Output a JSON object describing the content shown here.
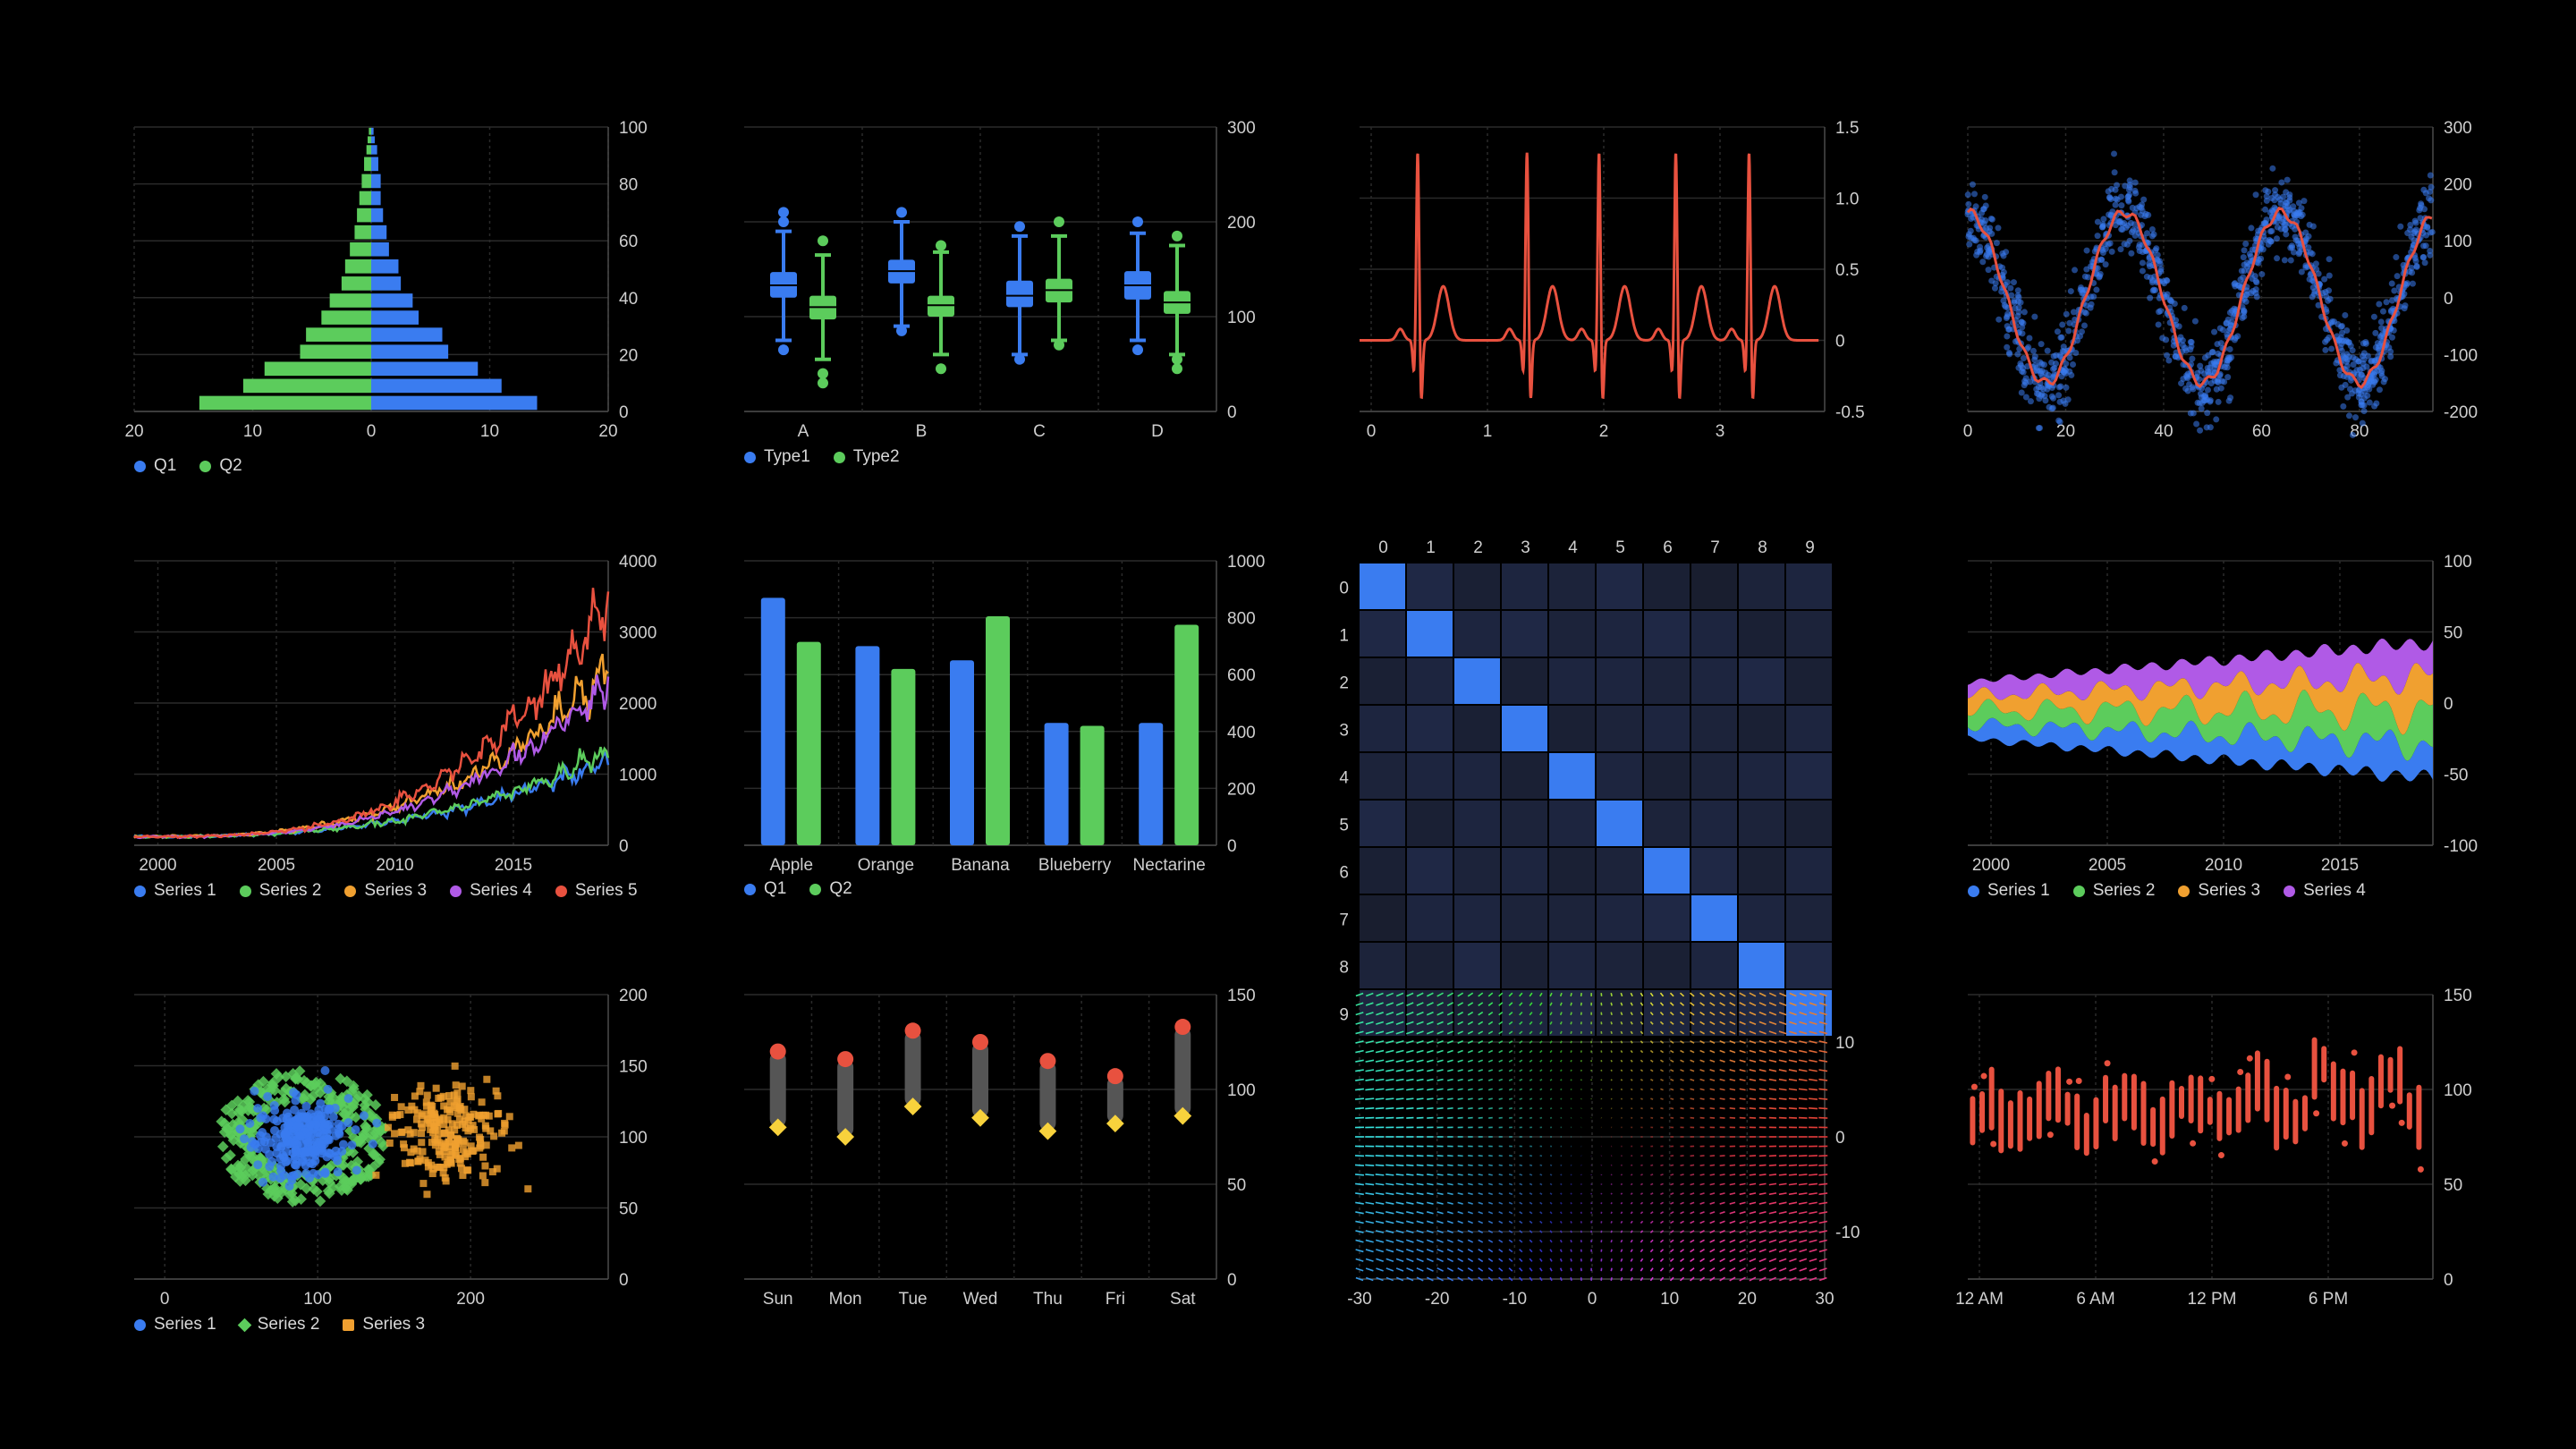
{
  "colors": {
    "blue": "#3a7cf0",
    "green": "#5ccc5c",
    "orange": "#f0a030",
    "purple": "#b05ae6",
    "red": "#e8513f",
    "yellow": "#f8d23c",
    "grid": "#2a2a2a",
    "axis": "#4a4a4a",
    "text": "#cfcfcf",
    "bg": "#000000"
  },
  "chart_data": [
    {
      "type": "bar",
      "kind": "population-pyramid",
      "title": "",
      "xlim": [
        -20,
        20
      ],
      "ylim": [
        0,
        100
      ],
      "xticks": [
        "20",
        "10",
        "0",
        "10",
        "20"
      ],
      "yticks": [
        "0",
        "20",
        "40",
        "60",
        "80",
        "100"
      ],
      "bands": [
        [
          0,
          6
        ],
        [
          6,
          12
        ],
        [
          12,
          18
        ],
        [
          18,
          24
        ],
        [
          24,
          30
        ],
        [
          30,
          36
        ],
        [
          36,
          42
        ],
        [
          42,
          48
        ],
        [
          48,
          54
        ],
        [
          54,
          60
        ],
        [
          60,
          66
        ],
        [
          66,
          72
        ],
        [
          72,
          78
        ],
        [
          78,
          84
        ],
        [
          84,
          90
        ],
        [
          90,
          94
        ],
        [
          94,
          97
        ],
        [
          97,
          100
        ]
      ],
      "series": [
        {
          "name": "Q1",
          "values": [
            14,
            11,
            9,
            6.5,
            6,
            4,
            3.5,
            2.5,
            2.3,
            1.5,
            1.3,
            1.0,
            0.8,
            0.8,
            0.6,
            0.5,
            0.3,
            0.2
          ]
        },
        {
          "name": "Q2",
          "values": [
            14.5,
            10.8,
            9.0,
            6.0,
            5.5,
            4.2,
            3.5,
            2.5,
            2.2,
            1.8,
            1.4,
            1.2,
            1.0,
            0.8,
            0.6,
            0.4,
            0.3,
            0.2
          ]
        }
      ]
    },
    {
      "type": "box",
      "title": "",
      "categories": [
        "A",
        "B",
        "C",
        "D"
      ],
      "ylim": [
        0,
        300
      ],
      "yticks": [
        "0",
        "100",
        "200",
        "300"
      ],
      "series": [
        {
          "name": "Type1",
          "boxes": [
            {
              "min": 75,
              "q1": 120,
              "median": 133,
              "q3": 147,
              "max": 190,
              "outliers": [
                65,
                200,
                210
              ]
            },
            {
              "min": 90,
              "q1": 135,
              "median": 148,
              "q3": 160,
              "max": 200,
              "outliers": [
                85,
                210
              ]
            },
            {
              "min": 60,
              "q1": 110,
              "median": 122,
              "q3": 138,
              "max": 185,
              "outliers": [
                55,
                195
              ]
            },
            {
              "min": 75,
              "q1": 118,
              "median": 133,
              "q3": 148,
              "max": 188,
              "outliers": [
                65,
                200
              ]
            }
          ]
        },
        {
          "name": "Type2",
          "boxes": [
            {
              "min": 55,
              "q1": 97,
              "median": 110,
              "q3": 122,
              "max": 165,
              "outliers": [
                40,
                30,
                180
              ]
            },
            {
              "min": 60,
              "q1": 100,
              "median": 112,
              "q3": 122,
              "max": 168,
              "outliers": [
                45,
                175
              ]
            },
            {
              "min": 75,
              "q1": 115,
              "median": 128,
              "q3": 140,
              "max": 185,
              "outliers": [
                70,
                200
              ]
            },
            {
              "min": 60,
              "q1": 103,
              "median": 115,
              "q3": 127,
              "max": 175,
              "outliers": [
                45,
                55,
                185
              ]
            }
          ]
        }
      ]
    },
    {
      "type": "line",
      "kind": "ecg",
      "title": "",
      "xlim": [
        -0.1,
        3.9
      ],
      "ylim": [
        -0.5,
        1.5
      ],
      "xticks": [
        "0",
        "1",
        "2",
        "3"
      ],
      "yticks": [
        "-0.5",
        "0",
        "0.5",
        "1.0",
        "1.5"
      ],
      "beats": [
        0.4,
        1.34,
        1.96,
        2.62,
        3.25
      ],
      "series": [
        {
          "name": "",
          "color": "#e8513f"
        }
      ]
    },
    {
      "type": "scatter",
      "kind": "noisy-sine",
      "title": "",
      "xlim": [
        0,
        95
      ],
      "ylim": [
        -200,
        300
      ],
      "xticks": [
        "0",
        "20",
        "40",
        "60",
        "80"
      ],
      "yticks": [
        "-200",
        "-100",
        "0",
        "100",
        "200",
        "300"
      ],
      "amplitude": 150,
      "period": 32,
      "phase_x": -8,
      "n_points": 1200,
      "noise": 35
    },
    {
      "type": "line",
      "title": "",
      "xlim": [
        1999,
        2019
      ],
      "ylim": [
        0,
        4000
      ],
      "xticks": [
        "2000",
        "2005",
        "2010",
        "2015"
      ],
      "yticks": [
        "0",
        "1000",
        "2000",
        "3000",
        "4000"
      ],
      "series": [
        {
          "name": "Series 1",
          "color": "#3a7cf0",
          "end": 1180
        },
        {
          "name": "Series 2",
          "color": "#5ccc5c",
          "end": 1300
        },
        {
          "name": "Series 3",
          "color": "#f0a030",
          "end": 2450
        },
        {
          "name": "Series 4",
          "color": "#b05ae6",
          "end": 2300
        },
        {
          "name": "Series 5",
          "color": "#e8513f",
          "end": 3450
        }
      ]
    },
    {
      "type": "bar",
      "title": "",
      "categories": [
        "Apple",
        "Orange",
        "Banana",
        "Blueberry",
        "Nectarine"
      ],
      "ylim": [
        0,
        1000
      ],
      "yticks": [
        "0",
        "200",
        "400",
        "600",
        "800",
        "1000"
      ],
      "series": [
        {
          "name": "Q1",
          "values": [
            870,
            700,
            650,
            430,
            430
          ]
        },
        {
          "name": "Q2",
          "values": [
            715,
            620,
            805,
            420,
            775
          ]
        }
      ]
    },
    {
      "type": "heatmap",
      "title": "",
      "xticks": [
        "0",
        "1",
        "2",
        "3",
        "4",
        "5",
        "6",
        "7",
        "8",
        "9"
      ],
      "yticks": [
        "0",
        "1",
        "2",
        "3",
        "4",
        "5",
        "6",
        "7",
        "8",
        "9"
      ],
      "values": [
        [
          1.0,
          0.35,
          0.2,
          0.3,
          0.25,
          0.35,
          0.2,
          0.15,
          0.25,
          0.3
        ],
        [
          0.35,
          1.0,
          0.3,
          0.35,
          0.25,
          0.3,
          0.35,
          0.3,
          0.2,
          0.25
        ],
        [
          0.2,
          0.3,
          1.0,
          0.2,
          0.3,
          0.3,
          0.25,
          0.3,
          0.35,
          0.2
        ],
        [
          0.3,
          0.35,
          0.2,
          1.0,
          0.2,
          0.25,
          0.3,
          0.25,
          0.2,
          0.3
        ],
        [
          0.25,
          0.3,
          0.3,
          0.2,
          1.0,
          0.3,
          0.2,
          0.25,
          0.3,
          0.35
        ],
        [
          0.35,
          0.2,
          0.3,
          0.25,
          0.3,
          1.0,
          0.25,
          0.3,
          0.25,
          0.2
        ],
        [
          0.2,
          0.35,
          0.25,
          0.3,
          0.2,
          0.25,
          1.0,
          0.35,
          0.2,
          0.3
        ],
        [
          0.15,
          0.3,
          0.3,
          0.25,
          0.25,
          0.3,
          0.35,
          1.0,
          0.3,
          0.25
        ],
        [
          0.25,
          0.2,
          0.35,
          0.2,
          0.3,
          0.25,
          0.2,
          0.3,
          1.0,
          0.35
        ],
        [
          0.3,
          0.25,
          0.2,
          0.3,
          0.35,
          0.2,
          0.3,
          0.25,
          0.35,
          1.0
        ]
      ]
    },
    {
      "type": "area",
      "kind": "streamgraph",
      "title": "",
      "xlim": [
        1999,
        2019
      ],
      "ylim": [
        -100,
        100
      ],
      "xticks": [
        "2000",
        "2005",
        "2010",
        "2015"
      ],
      "yticks": [
        "-100",
        "-50",
        "0",
        "50",
        "100"
      ],
      "series": [
        {
          "name": "Series 1",
          "color": "#3a7cf0"
        },
        {
          "name": "Series 2",
          "color": "#5ccc5c"
        },
        {
          "name": "Series 3",
          "color": "#f0a030"
        },
        {
          "name": "Series 4",
          "color": "#b05ae6"
        }
      ]
    },
    {
      "type": "scatter",
      "title": "",
      "xlim": [
        -20,
        290
      ],
      "ylim": [
        0,
        200
      ],
      "xticks": [
        "0",
        "100",
        "200"
      ],
      "yticks": [
        "0",
        "50",
        "100",
        "150",
        "200"
      ],
      "series": [
        {
          "name": "Series 1",
          "color": "#3a7cf0",
          "shape": "circle",
          "center": [
            90,
            100
          ],
          "spread": 14,
          "n": 250
        },
        {
          "name": "Series 2",
          "color": "#5ccc5c",
          "shape": "diamond",
          "center": [
            90,
            100
          ],
          "ring": 55,
          "n": 300
        },
        {
          "name": "Series 3",
          "color": "#f0a030",
          "shape": "square",
          "center": [
            185,
            102
          ],
          "spread": 18,
          "n": 220
        }
      ]
    },
    {
      "type": "range",
      "title": "",
      "categories": [
        "Sun",
        "Mon",
        "Tue",
        "Wed",
        "Thu",
        "Fri",
        "Sat"
      ],
      "ylim": [
        0,
        150
      ],
      "yticks": [
        "0",
        "50",
        "100",
        "150"
      ],
      "high": [
        120,
        116,
        131,
        125,
        115,
        107,
        133
      ],
      "low": [
        80,
        75,
        91,
        85,
        78,
        82,
        86
      ]
    },
    {
      "type": "vector-field",
      "title": "",
      "xlim": [
        -30,
        30
      ],
      "ylim": [
        -15,
        15
      ],
      "xticks": [
        "-30",
        "-20",
        "-10",
        "0",
        "10",
        "20",
        "30"
      ],
      "yticks": [
        "-10",
        "0",
        "10"
      ]
    },
    {
      "type": "range",
      "kind": "intraday",
      "title": "",
      "xlim": [
        0,
        24
      ],
      "ylim": [
        0,
        150
      ],
      "xticks": [
        "12 AM",
        "6 AM",
        "12 PM",
        "6 PM"
      ],
      "yticks": [
        "0",
        "50",
        "100",
        "150"
      ],
      "n_bars": 48
    }
  ]
}
